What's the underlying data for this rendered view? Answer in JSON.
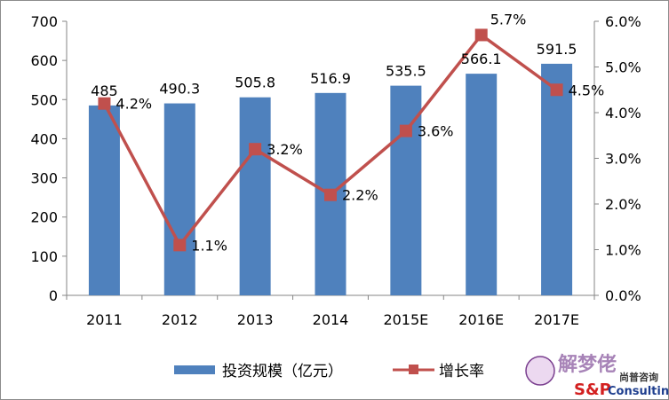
{
  "chart_data": {
    "type": "bar",
    "categories": [
      "2011",
      "2012",
      "2013",
      "2014",
      "2015E",
      "2016E",
      "2017E"
    ],
    "series": [
      {
        "name": "投资规模（亿元）",
        "type": "bar",
        "axis": "left",
        "values": [
          485,
          490.3,
          505.8,
          516.9,
          535.5,
          566.1,
          591.5
        ],
        "labels": [
          "485",
          "490.3",
          "505.8",
          "516.9",
          "535.5",
          "566.1",
          "591.5"
        ],
        "color": "#4f81bd"
      },
      {
        "name": "增长率",
        "type": "line",
        "axis": "right",
        "values": [
          4.2,
          1.1,
          3.2,
          2.2,
          3.6,
          5.7,
          4.5
        ],
        "labels": [
          "4.2%",
          "1.1%",
          "3.2%",
          "2.2%",
          "3.6%",
          "5.7%",
          "4.5%"
        ],
        "color": "#c0504d"
      }
    ],
    "ylim": [
      0,
      700
    ],
    "yticks": [
      "0",
      "100",
      "200",
      "300",
      "400",
      "500",
      "600",
      "700"
    ],
    "y2lim": [
      0,
      6
    ],
    "y2ticks": [
      "0.0%",
      "1.0%",
      "2.0%",
      "3.0%",
      "4.0%",
      "5.0%",
      "6.0%"
    ],
    "grid": false,
    "legend": "bottom"
  },
  "watermark": {
    "text1": "解梦佬",
    "text2": "尚普咨询",
    "text3": "S&P",
    "text4": "Consulting"
  }
}
